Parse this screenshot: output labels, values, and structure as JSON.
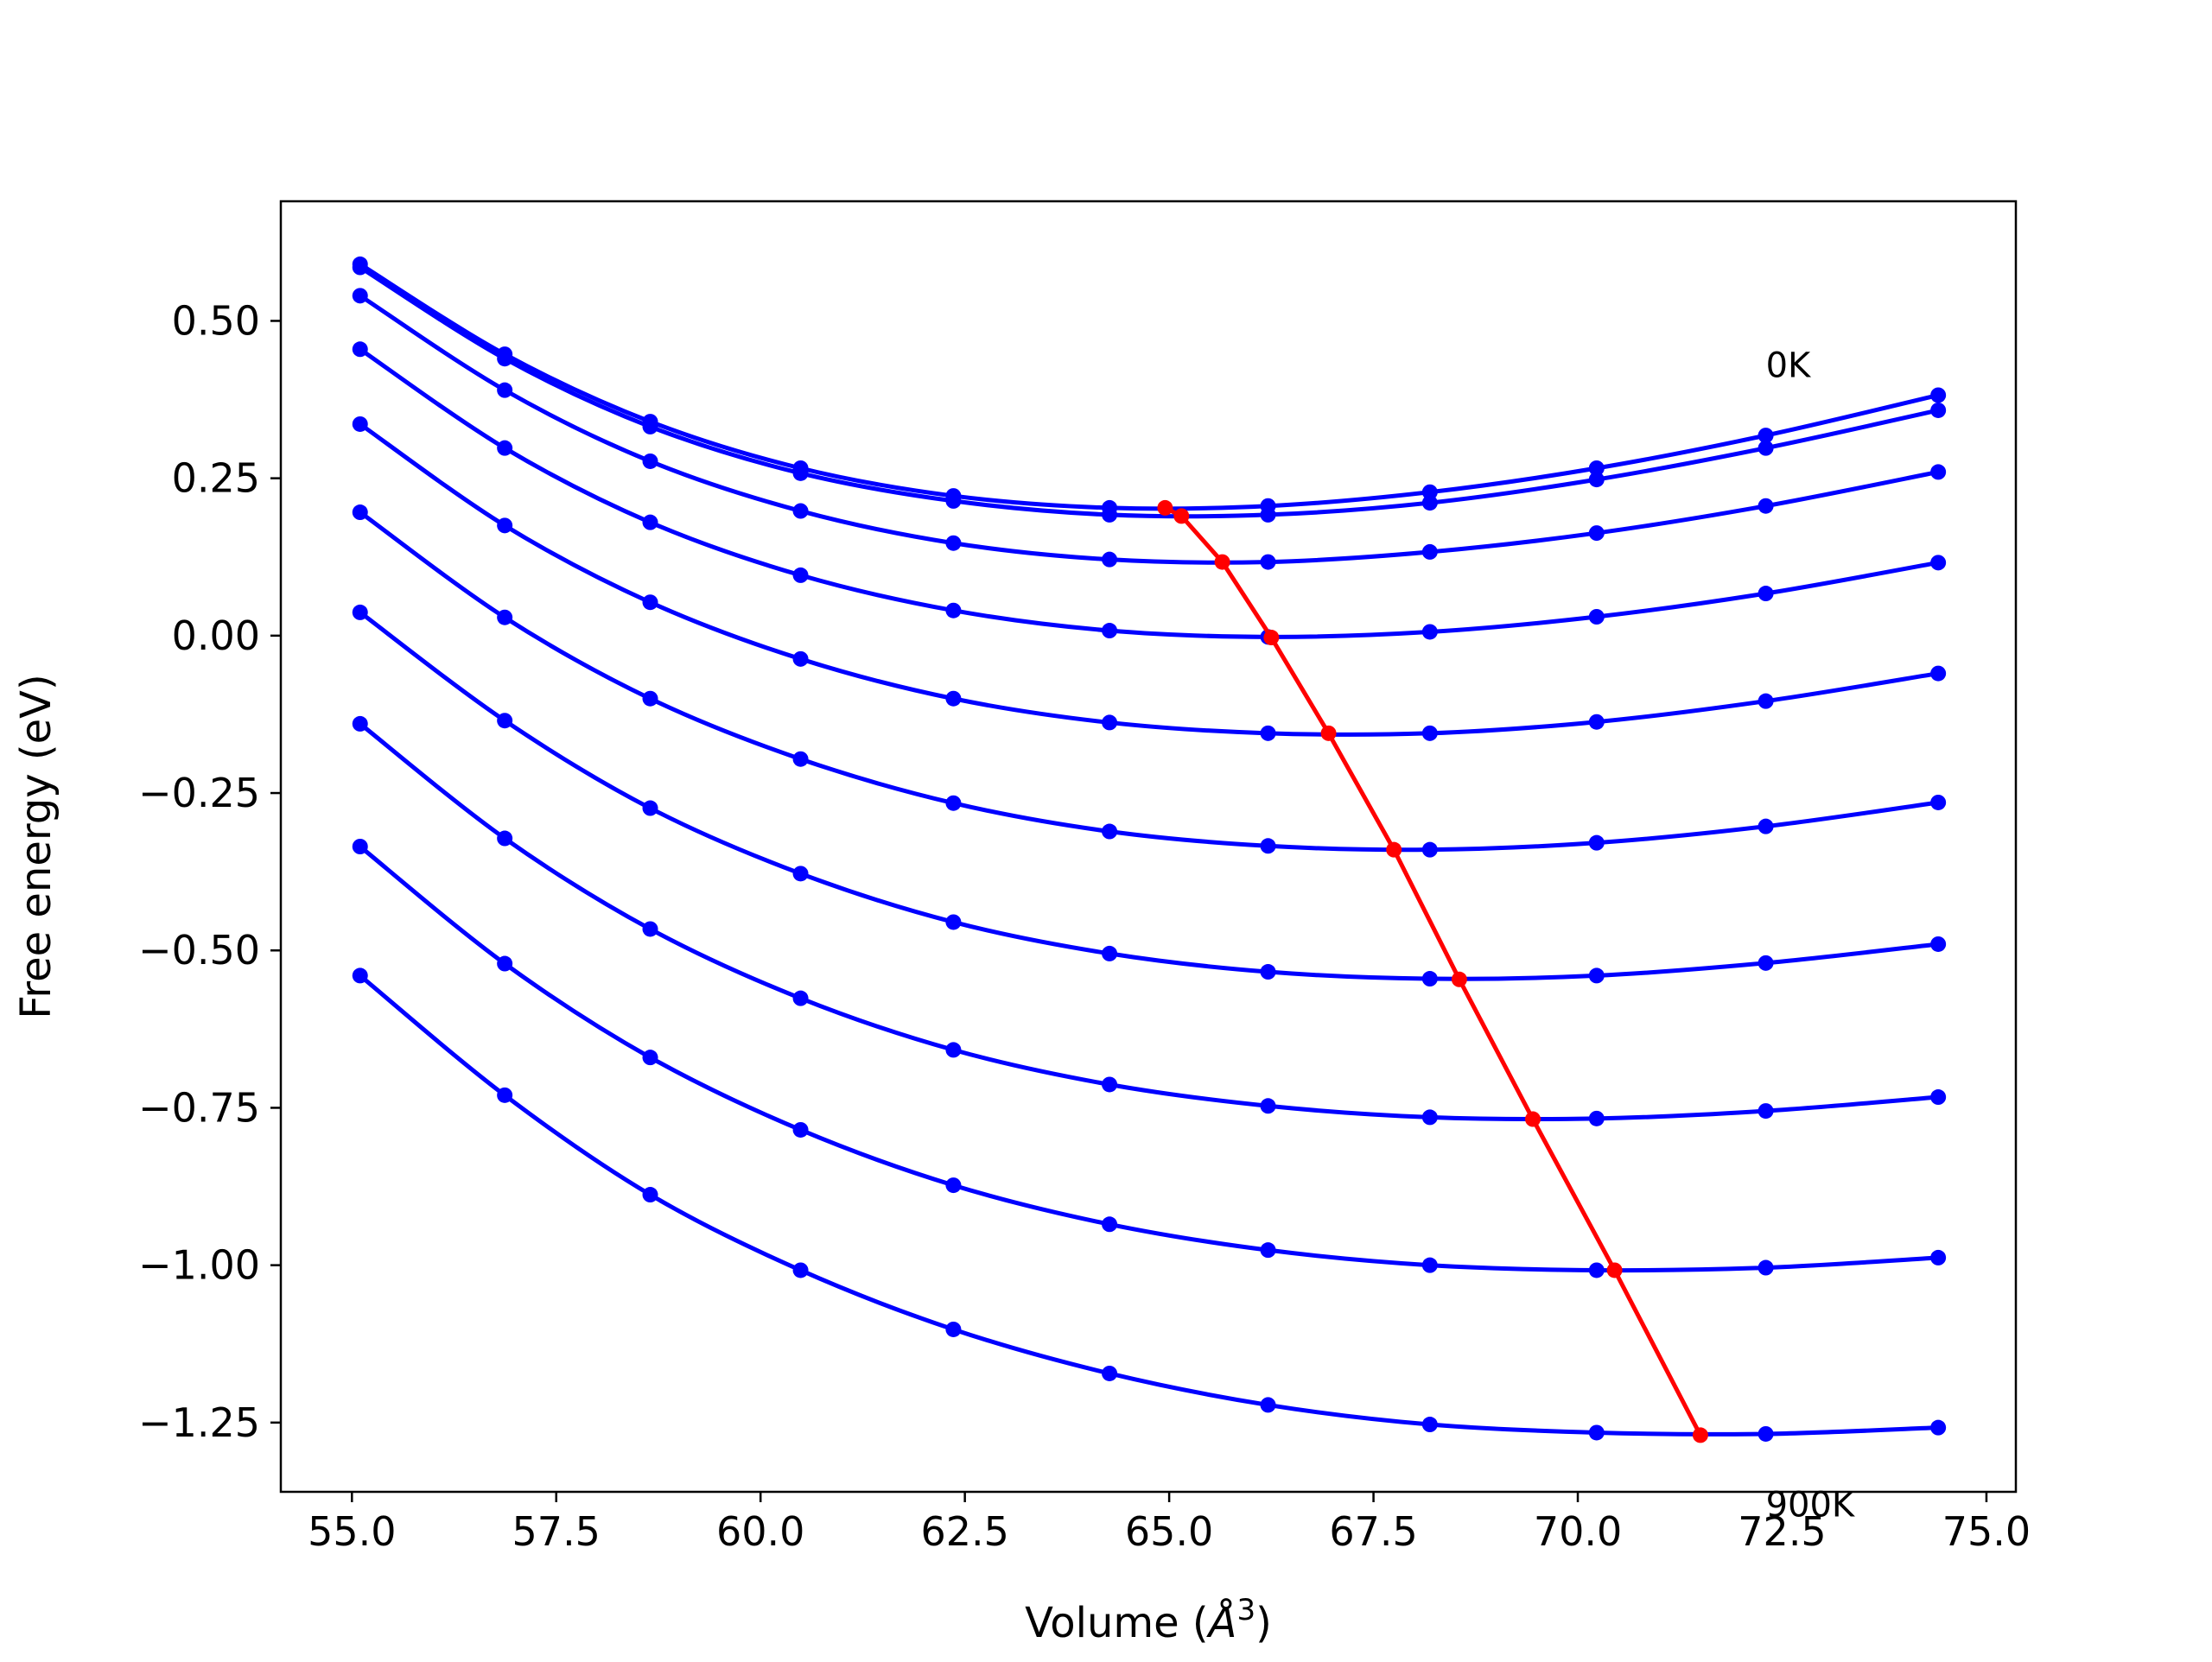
{
  "chart_data": {
    "type": "line",
    "title": "",
    "xlabel": "Volume ($\\AA^3$)",
    "xlabel_parts": {
      "text": "Volume (",
      "symbol": "Å",
      "sup": "3",
      "close": ")"
    },
    "ylabel": "Free energy (eV)",
    "xlim": [
      54.13,
      75.36
    ],
    "ylim": [
      -1.36,
      0.69
    ],
    "x_ticks": [
      55.0,
      57.5,
      60.0,
      62.5,
      65.0,
      67.5,
      70.0,
      72.5,
      75.0
    ],
    "x_tick_labels": [
      "55.0",
      "57.5",
      "60.0",
      "62.5",
      "65.0",
      "67.5",
      "70.0",
      "72.5",
      "75.0"
    ],
    "y_ticks": [
      0.5,
      0.25,
      0.0,
      -0.25,
      -0.5,
      -0.75,
      -1.0,
      -1.25
    ],
    "y_tick_labels": [
      "0.50",
      "0.25",
      "0.00",
      "−0.25",
      "−0.50",
      "−0.75",
      "−1.00",
      "−1.25"
    ],
    "grid": false,
    "colors": {
      "curves": "#0000ff",
      "minimum": "#ff0000",
      "axes": "#000000"
    },
    "annotations": [
      {
        "text": "0K",
        "x": 72.3,
        "y": 0.43
      },
      {
        "text": "900K",
        "x": 72.3,
        "y": -1.38
      }
    ],
    "x": [
      55.1,
      56.87,
      58.65,
      60.49,
      62.36,
      64.27,
      66.21,
      68.19,
      70.23,
      72.3,
      74.41
    ],
    "series": [
      {
        "values": [
          0.59,
          0.447,
          0.34,
          0.266,
          0.222,
          0.203,
          0.206,
          0.228,
          0.266,
          0.318,
          0.382
        ]
      },
      {
        "values": [
          0.585,
          0.44,
          0.332,
          0.258,
          0.214,
          0.192,
          0.192,
          0.211,
          0.248,
          0.298,
          0.358
        ]
      },
      {
        "values": [
          0.54,
          0.39,
          0.277,
          0.198,
          0.147,
          0.121,
          0.117,
          0.133,
          0.163,
          0.206,
          0.26
        ]
      },
      {
        "values": [
          0.455,
          0.298,
          0.18,
          0.096,
          0.04,
          0.008,
          -0.002,
          0.006,
          0.03,
          0.067,
          0.116
        ]
      },
      {
        "values": [
          0.336,
          0.175,
          0.053,
          -0.037,
          -0.1,
          -0.138,
          -0.155,
          -0.155,
          -0.137,
          -0.104,
          -0.06
        ]
      },
      {
        "values": [
          0.196,
          0.029,
          -0.1,
          -0.196,
          -0.266,
          -0.311,
          -0.334,
          -0.34,
          -0.329,
          -0.303,
          -0.265
        ]
      },
      {
        "values": [
          0.037,
          -0.135,
          -0.274,
          -0.378,
          -0.455,
          -0.505,
          -0.534,
          -0.545,
          -0.54,
          -0.52,
          -0.49
        ]
      },
      {
        "values": [
          -0.14,
          -0.322,
          -0.466,
          -0.576,
          -0.658,
          -0.713,
          -0.747,
          -0.765,
          -0.767,
          -0.755,
          -0.733
        ]
      },
      {
        "values": [
          -0.335,
          -0.521,
          -0.67,
          -0.785,
          -0.873,
          -0.935,
          -0.976,
          -1.0,
          -1.008,
          -1.004,
          -0.988
        ]
      },
      {
        "values": [
          -0.54,
          -0.73,
          -0.888,
          -1.008,
          -1.102,
          -1.172,
          -1.222,
          -1.253,
          -1.266,
          -1.268,
          -1.258
        ]
      }
    ],
    "minimum_line": {
      "x": [
        64.95,
        65.15,
        65.65,
        66.25,
        66.95,
        67.75,
        68.55,
        69.45,
        70.45,
        71.5
      ],
      "y": [
        0.203,
        0.19,
        0.117,
        -0.003,
        -0.155,
        -0.34,
        -0.546,
        -0.768,
        -1.008,
        -1.27
      ]
    }
  }
}
